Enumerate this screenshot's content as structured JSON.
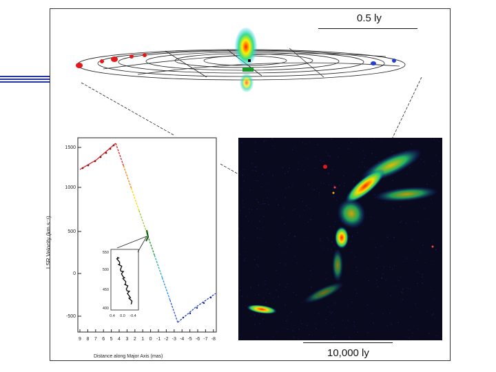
{
  "top_scale": {
    "label": "0.5 ly"
  },
  "bottom_scale": {
    "label": "10,000 ly"
  },
  "rotation_curve": {
    "y_axis_label": "LSR Velocity (km s⁻¹)",
    "x_axis_label": "Distance along Major Axis (mas)",
    "y_ticks": [
      "1500",
      "1000",
      "500",
      "0",
      "-500"
    ],
    "x_ticks": [
      "9",
      "8",
      "7",
      "6",
      "5",
      "4",
      "3",
      "2",
      "1",
      "0",
      "-1",
      "-2",
      "-3",
      "-4",
      "-5",
      "-6",
      "-7",
      "-8"
    ]
  },
  "inset_plot": {
    "y_ticks": [
      "550",
      "500",
      "450",
      "400"
    ],
    "x_ticks": [
      "0.4",
      "0.0",
      "-0.4"
    ]
  },
  "colors": {
    "frame": "#333333",
    "accent_bars": "#2233aa",
    "radio_map_background": "#0a0a1e",
    "redshifted_masers": "#e31a1c",
    "blueshifted_masers": "#1f3fd6",
    "systemic_masers": "#1a9a2a"
  }
}
